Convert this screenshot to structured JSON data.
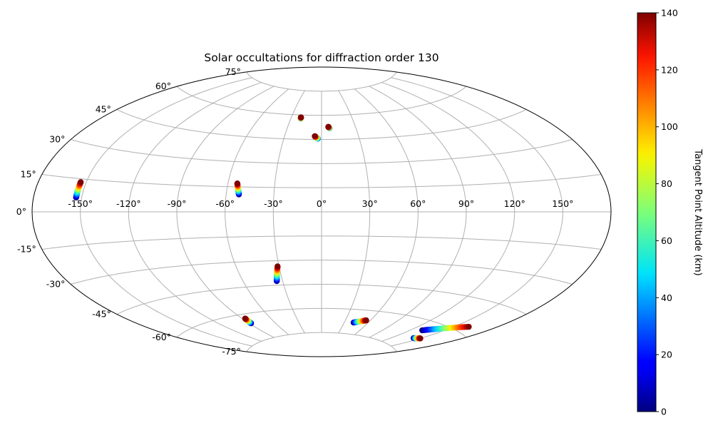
{
  "chart_data": {
    "type": "scatter",
    "projection": "aitoff",
    "title": "Solar occultations for diffraction order 130",
    "grid": true,
    "x_tick_labels": [
      "-150°",
      "-120°",
      "-90°",
      "-60°",
      "-30°",
      "0°",
      "30°",
      "60°",
      "90°",
      "120°",
      "150°"
    ],
    "x_tick_values": [
      -150,
      -120,
      -90,
      -60,
      -30,
      0,
      30,
      60,
      90,
      120,
      150
    ],
    "y_tick_labels": [
      "75°",
      "60°",
      "45°",
      "30°",
      "15°",
      "0°",
      "-15°",
      "-30°",
      "-45°",
      "-60°",
      "-75°"
    ],
    "y_tick_values": [
      75,
      60,
      45,
      30,
      15,
      0,
      -15,
      -30,
      -45,
      -60,
      -75
    ],
    "xlim": [
      -180,
      180
    ],
    "ylim": [
      -90,
      90
    ],
    "colorbar": {
      "label": "Tangent Point Altitude (km)",
      "colormap": "jet",
      "range": [
        0,
        140
      ],
      "tick_labels": [
        "0",
        "20",
        "40",
        "60",
        "80",
        "100",
        "120",
        "140"
      ],
      "tick_values": [
        0,
        20,
        40,
        60,
        80,
        100,
        120,
        140
      ]
    },
    "color_encodes": "altitude_km",
    "tracks": [
      {
        "start": {
          "lon": -153.5,
          "lat": 6.5,
          "altitude_km": 0
        },
        "end": {
          "lon": -153.5,
          "lat": 13.5,
          "altitude_km": 140
        }
      },
      {
        "start": {
          "lon": -52.0,
          "lat": 10.5,
          "altitude_km": 0
        },
        "end": {
          "lon": -54.0,
          "lat": 17.0,
          "altitude_km": 140
        }
      },
      {
        "start": {
          "lon": -3.0,
          "lat": 45.5,
          "altitude_km": 30
        },
        "end": {
          "lon": -5.5,
          "lat": 47.0,
          "altitude_km": 140
        }
      },
      {
        "start": {
          "lon": -20.5,
          "lat": 57.8,
          "altitude_km": 40
        },
        "end": {
          "lon": -20.5,
          "lat": 58.5,
          "altitude_km": 140
        }
      },
      {
        "start": {
          "lon": 7.0,
          "lat": 52.0,
          "altitude_km": 30
        },
        "end": {
          "lon": 6.0,
          "lat": 52.8,
          "altitude_km": 140
        }
      },
      {
        "start": {
          "lon": -34.5,
          "lat": -42.5,
          "altitude_km": 0
        },
        "end": {
          "lon": -31.0,
          "lat": -33.5,
          "altitude_km": 140
        }
      },
      {
        "start": {
          "lon": -88.0,
          "lat": -65.5,
          "altitude_km": 0
        },
        "end": {
          "lon": -87.0,
          "lat": -62.5,
          "altitude_km": 140
        }
      },
      {
        "start": {
          "lon": 42.0,
          "lat": -68.0,
          "altitude_km": 0
        },
        "end": {
          "lon": 55.0,
          "lat": -66.0,
          "altitude_km": 140
        }
      },
      {
        "start": {
          "lon": 131.5,
          "lat": -65.0,
          "altitude_km": 0
        },
        "end": {
          "lon": 161.0,
          "lat": -57.0,
          "altitude_km": 140
        }
      },
      {
        "start": {
          "lon": 143.5,
          "lat": -69.0,
          "altitude_km": 0
        },
        "end": {
          "lon": 150.0,
          "lat": -68.0,
          "altitude_km": 140
        }
      }
    ]
  }
}
